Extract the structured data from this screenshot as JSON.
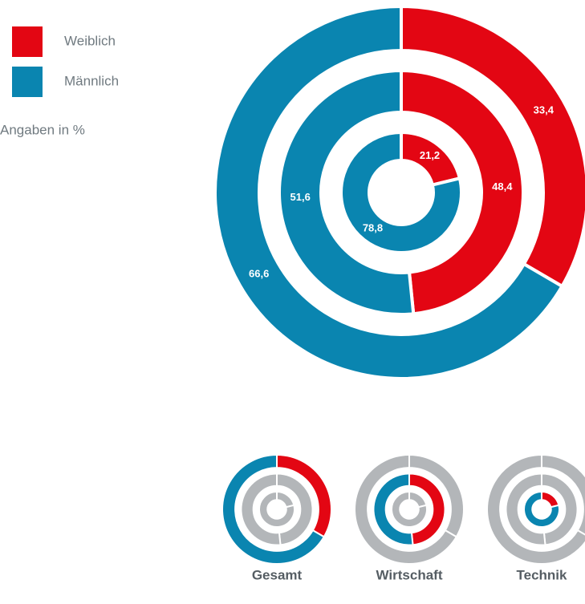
{
  "chart_data": {
    "type": "donut",
    "categories": [
      "Weiblich",
      "Männlich"
    ],
    "colors": [
      "#e30613",
      "#0a85b0"
    ],
    "inactive_color": "#b3b6b9",
    "annotation": "Angaben in %",
    "rings": [
      {
        "name": "Gesamt",
        "values": [
          33.4,
          66.6
        ],
        "value_labels": [
          "33,4",
          "66,6"
        ]
      },
      {
        "name": "Wirtschaft",
        "values": [
          48.4,
          51.6
        ],
        "value_labels": [
          "48,4",
          "51,6"
        ]
      },
      {
        "name": "Technik",
        "values": [
          21.2,
          78.8
        ],
        "value_labels": [
          "21,2",
          "78,8"
        ]
      }
    ]
  }
}
